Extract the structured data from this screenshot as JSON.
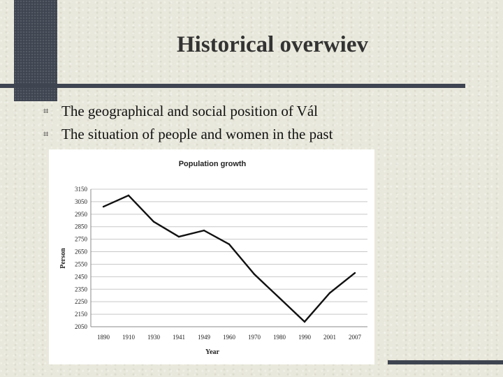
{
  "slide": {
    "title": "Historical overwiev",
    "bullets": [
      "The geographical and social position of Vál",
      "The situation of people and women in the past"
    ]
  },
  "chart_data": {
    "type": "line",
    "title": "Population growth",
    "xlabel": "Year",
    "ylabel": "Person",
    "categories": [
      "1890",
      "1910",
      "1930",
      "1941",
      "1949",
      "1960",
      "1970",
      "1980",
      "1990",
      "2001",
      "2007"
    ],
    "y_ticks": [
      2050,
      2150,
      2250,
      2350,
      2450,
      2550,
      2650,
      2750,
      2850,
      2950,
      3050,
      3150
    ],
    "ylim": [
      2050,
      3150
    ],
    "grid": true,
    "series": [
      {
        "values": [
          3010,
          3100,
          2890,
          2770,
          2820,
          2710,
          2470,
          2280,
          2090,
          2320,
          2480
        ]
      }
    ],
    "colors": {
      "line": "#111111",
      "grid": "#c8c8c8"
    }
  }
}
